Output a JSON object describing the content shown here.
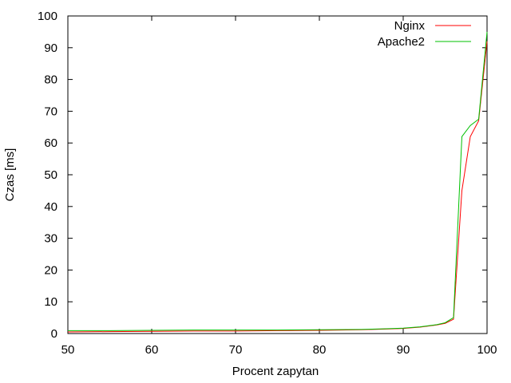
{
  "chart_data": {
    "type": "line",
    "title": "",
    "xlabel": "Procent zapytan",
    "ylabel": "Czas [ms]",
    "xlim": [
      50,
      100
    ],
    "ylim": [
      0,
      100
    ],
    "x_ticks": [
      50,
      60,
      70,
      80,
      90,
      100
    ],
    "y_ticks": [
      0,
      10,
      20,
      30,
      40,
      50,
      60,
      70,
      80,
      90,
      100
    ],
    "grid": false,
    "legend_position": "top-right",
    "series": [
      {
        "name": "Nginx",
        "color": "#ff0000",
        "points": [
          [
            50,
            0.5
          ],
          [
            55,
            0.6
          ],
          [
            60,
            0.7
          ],
          [
            65,
            0.8
          ],
          [
            70,
            0.8
          ],
          [
            75,
            0.9
          ],
          [
            80,
            1.0
          ],
          [
            85,
            1.2
          ],
          [
            88,
            1.4
          ],
          [
            90,
            1.6
          ],
          [
            92,
            2.0
          ],
          [
            94,
            2.7
          ],
          [
            95,
            3.2
          ],
          [
            96,
            4.5
          ],
          [
            97,
            45
          ],
          [
            98,
            62
          ],
          [
            99,
            67
          ],
          [
            100,
            92
          ]
        ]
      },
      {
        "name": "Apache2",
        "color": "#00c000",
        "points": [
          [
            50,
            0.9
          ],
          [
            55,
            0.9
          ],
          [
            60,
            1.0
          ],
          [
            65,
            1.1
          ],
          [
            70,
            1.1
          ],
          [
            75,
            1.1
          ],
          [
            80,
            1.2
          ],
          [
            85,
            1.3
          ],
          [
            88,
            1.5
          ],
          [
            90,
            1.7
          ],
          [
            92,
            2.1
          ],
          [
            94,
            2.8
          ],
          [
            95,
            3.4
          ],
          [
            96,
            5.0
          ],
          [
            97,
            62
          ],
          [
            98,
            65.5
          ],
          [
            99,
            67.5
          ],
          [
            100,
            95
          ]
        ]
      }
    ]
  }
}
